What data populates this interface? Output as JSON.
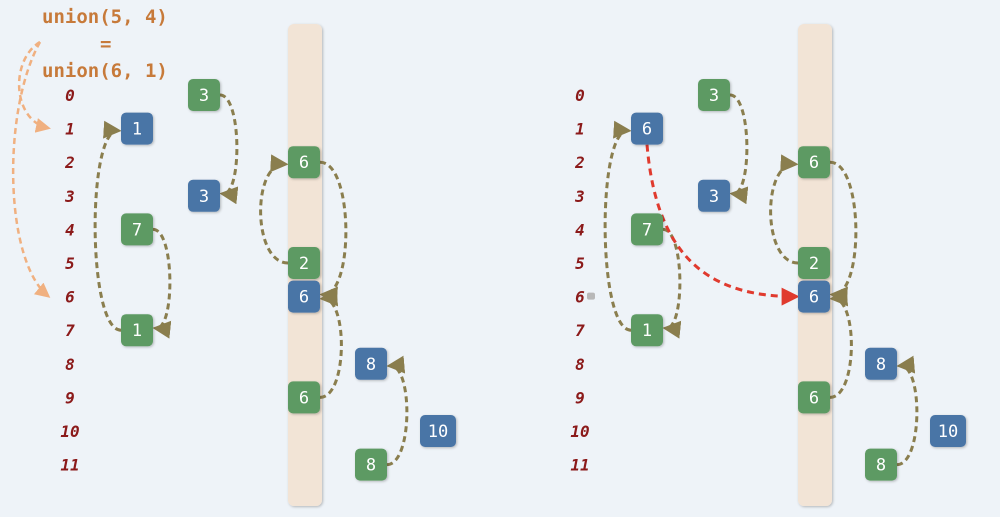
{
  "caption": {
    "line1": "union(5, 4)",
    "line2": "=",
    "line3": "union(6, 1)"
  },
  "row_labels": [
    "0",
    "1",
    "2",
    "3",
    "4",
    "5",
    "6",
    "7",
    "8",
    "9",
    "10",
    "11"
  ],
  "colors": {
    "green": "#5d9a63",
    "blue": "#4a74a6",
    "index_text": "#8b1a1a",
    "bar": "#f2e4d6",
    "arrow": "#8a7e4e",
    "highlight_arrow": "#e03a2e",
    "caption_arrow": "#f0b080"
  },
  "panels": [
    {
      "id": "left",
      "nodes": [
        {
          "id": "L0",
          "value": "3",
          "color": "green"
        },
        {
          "id": "L1",
          "value": "1",
          "color": "blue"
        },
        {
          "id": "L2",
          "value": "6",
          "color": "green"
        },
        {
          "id": "L3",
          "value": "3",
          "color": "blue"
        },
        {
          "id": "L4",
          "value": "7",
          "color": "green"
        },
        {
          "id": "L5",
          "value": "2",
          "color": "green"
        },
        {
          "id": "L6",
          "value": "6",
          "color": "blue"
        },
        {
          "id": "L7",
          "value": "1",
          "color": "green"
        },
        {
          "id": "L8",
          "value": "8",
          "color": "blue"
        },
        {
          "id": "L9",
          "value": "6",
          "color": "green"
        },
        {
          "id": "L10",
          "value": "10",
          "color": "blue"
        },
        {
          "id": "L11",
          "value": "8",
          "color": "green"
        }
      ]
    },
    {
      "id": "right",
      "nodes": [
        {
          "id": "R0",
          "value": "3",
          "color": "green"
        },
        {
          "id": "R1",
          "value": "6",
          "color": "blue"
        },
        {
          "id": "R2",
          "value": "6",
          "color": "green"
        },
        {
          "id": "R3",
          "value": "3",
          "color": "blue"
        },
        {
          "id": "R4",
          "value": "7",
          "color": "green"
        },
        {
          "id": "R5",
          "value": "2",
          "color": "green"
        },
        {
          "id": "R6",
          "value": "6",
          "color": "blue"
        },
        {
          "id": "R7",
          "value": "1",
          "color": "green"
        },
        {
          "id": "R8",
          "value": "8",
          "color": "blue"
        },
        {
          "id": "R9",
          "value": "6",
          "color": "green"
        },
        {
          "id": "R10",
          "value": "10",
          "color": "blue"
        },
        {
          "id": "R11",
          "value": "8",
          "color": "green"
        }
      ]
    }
  ]
}
